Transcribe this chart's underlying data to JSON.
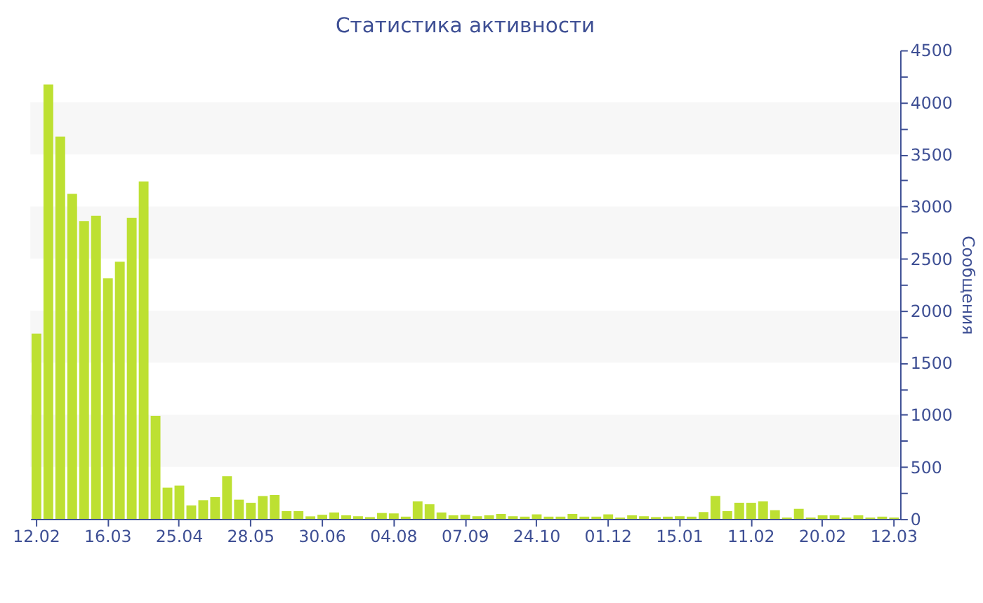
{
  "chart_data": {
    "type": "bar",
    "title": "Статистика активности",
    "ylabel": "Сообщения",
    "categories": [
      "12.02",
      null,
      null,
      null,
      null,
      null,
      "16.03",
      null,
      null,
      null,
      null,
      null,
      "25.04",
      null,
      null,
      null,
      null,
      null,
      "28.05",
      null,
      null,
      null,
      null,
      null,
      "30.06",
      null,
      null,
      null,
      null,
      null,
      "04.08",
      null,
      null,
      null,
      null,
      null,
      "07.09",
      null,
      null,
      null,
      null,
      null,
      "24.10",
      null,
      null,
      null,
      null,
      null,
      "01.12",
      null,
      null,
      null,
      null,
      null,
      "15.01",
      null,
      null,
      null,
      null,
      null,
      "11.02",
      null,
      null,
      null,
      null,
      null,
      "20.02",
      null,
      null,
      null,
      null,
      null,
      "12.03"
    ],
    "values": [
      1780,
      4170,
      3670,
      3120,
      2860,
      2910,
      2310,
      2470,
      2890,
      3240,
      990,
      300,
      320,
      130,
      180,
      210,
      410,
      185,
      155,
      220,
      230,
      75,
      75,
      25,
      40,
      62,
      35,
      26,
      18,
      57,
      53,
      22,
      168,
      141,
      62,
      35,
      40,
      26,
      35,
      48,
      26,
      22,
      44,
      22,
      22,
      48,
      22,
      22,
      44,
      13,
      35,
      26,
      18,
      22,
      26,
      22,
      66,
      221,
      75,
      155,
      155,
      168,
      84,
      13,
      97,
      13,
      35,
      35,
      13,
      35,
      13,
      22,
      13
    ],
    "color": "#bde032",
    "ylim": [
      0,
      4500
    ],
    "yticks": [
      0,
      {
        "value": 250,
        "label": null
      },
      500,
      {
        "value": 750,
        "label": null
      },
      1000,
      {
        "value": 1250,
        "label": null
      },
      1500,
      {
        "value": 1750,
        "label": null
      },
      2000,
      {
        "value": 2250,
        "label": null
      },
      2500,
      {
        "value": 2750,
        "label": null
      },
      3000,
      {
        "value": 3250,
        "label": null
      },
      3500,
      {
        "value": 3750,
        "label": null
      },
      4000,
      {
        "value": 4250,
        "label": null
      },
      4500
    ],
    "bands": [
      {
        "axis": "y",
        "from": 500,
        "to": 1000,
        "color": "#f7f7f7"
      },
      {
        "axis": "y",
        "from": 1500,
        "to": 2000,
        "color": "#f7f7f7"
      },
      {
        "axis": "y",
        "from": 2500,
        "to": 3000,
        "color": "#f7f7f7"
      },
      {
        "axis": "y",
        "from": 3500,
        "to": 4000,
        "color": "#f7f7f7"
      }
    ],
    "grid": false
  }
}
